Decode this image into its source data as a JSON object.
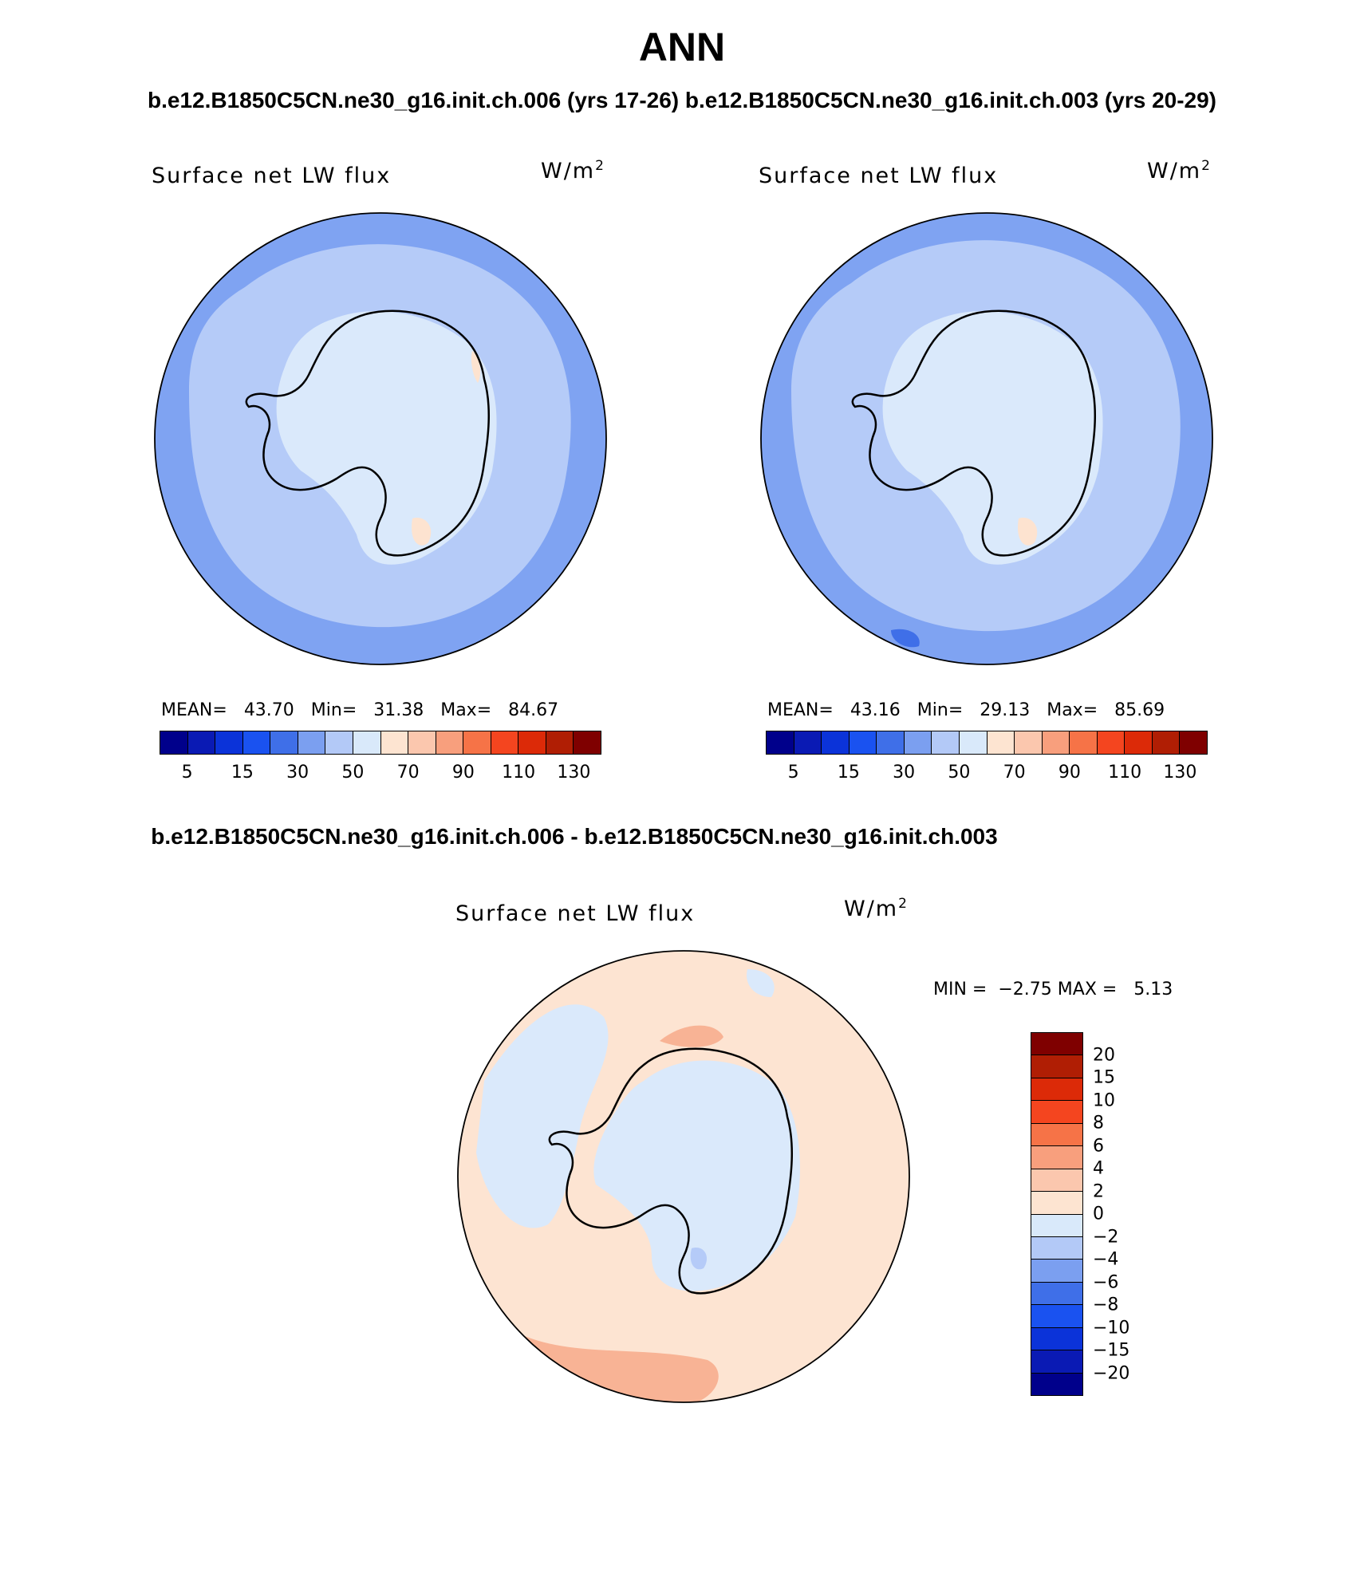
{
  "figure": {
    "season": "ANN",
    "case_titles": "b.e12.B1850C5CN.ne30_g16.init.ch.006 (yrs 17-26)  b.e12.B1850C5CN.ne30_g16.init.ch.003 (yrs 20-29)",
    "diff_title": "b.e12.B1850C5CN.ne30_g16.init.ch.006 - b.e12.B1850C5CN.ne30_g16.init.ch.003"
  },
  "panels": [
    {
      "variable": "Surface net LW flux",
      "units": "W/m",
      "units_exp": "2",
      "mean_label": "MEAN=",
      "mean": "43.70",
      "min_label": "Min=",
      "min": "31.38",
      "max_label": "Max=",
      "max": "84.67"
    },
    {
      "variable": "Surface net LW flux",
      "units": "W/m",
      "units_exp": "2",
      "mean_label": "MEAN=",
      "mean": "43.16",
      "min_label": "Min=",
      "min": "29.13",
      "max_label": "Max=",
      "max": "85.69"
    }
  ],
  "diff_panel": {
    "variable": "Surface net LW flux",
    "units": "W/m",
    "units_exp": "2",
    "min_label": "MIN =",
    "min": "−2.75",
    "max_label": "MAX =",
    "max": "5.13"
  },
  "colorbar_main": {
    "colors": [
      "#00008b",
      "#0a1ab4",
      "#0b33d9",
      "#1a52f0",
      "#3f6fe8",
      "#7b9ff0",
      "#b3c9f7",
      "#d9e9fa",
      "#fde4d1",
      "#fbc7ae",
      "#f89f7d",
      "#f67347",
      "#f4451f",
      "#dc2a08",
      "#b01e04",
      "#7f0000"
    ],
    "tick_labels": [
      "5",
      "15",
      "30",
      "50",
      "70",
      "90",
      "110",
      "130"
    ]
  },
  "colorbar_diff": {
    "colors": [
      "#7f0000",
      "#b01e04",
      "#dc2a08",
      "#f4451f",
      "#f67347",
      "#f89f7d",
      "#fbc7ae",
      "#fde4d1",
      "#d9e9fa",
      "#b3c9f7",
      "#7b9ff0",
      "#3f6fe8",
      "#1a52f0",
      "#0b33d9",
      "#0a1ab4",
      "#00008b"
    ],
    "tick_labels": [
      "20",
      "15",
      "10",
      "8",
      "6",
      "4",
      "2",
      "0",
      "−2",
      "−4",
      "−6",
      "−8",
      "−10",
      "−15",
      "−20"
    ]
  },
  "map_colors": {
    "outer": "#7fa3f2",
    "mid": "#b5cbf8",
    "ice": "#dae9fb",
    "warm": "#fde3d0",
    "warm2": "#fac5ac",
    "diff_bg": "#fde4d2",
    "diff_cool": "#dae9fb",
    "diff_cool2": "#b5cbf8",
    "diff_warm": "#f8b395"
  }
}
